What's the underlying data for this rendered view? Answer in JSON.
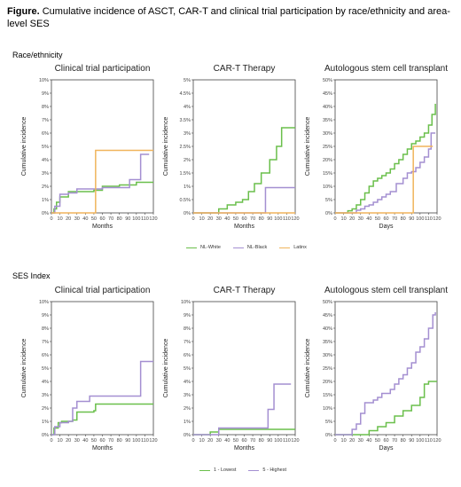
{
  "figure": {
    "label": "Figure.",
    "title": "Cumulative incidence of ASCT, CAR-T and clinical trial participation by race/ethnicity and area-level SES"
  },
  "sections": [
    "Race/ethnicity",
    "SES Index"
  ],
  "legends": [
    [
      {
        "name": "NL-White",
        "color": "#6abf4b"
      },
      {
        "name": "NL-Black",
        "color": "#a48fd1"
      },
      {
        "name": "Latinx",
        "color": "#f0b45c"
      }
    ],
    [
      {
        "name": "1 - Lowest",
        "color": "#6abf4b"
      },
      {
        "name": "5 - Highest",
        "color": "#a48fd1"
      }
    ]
  ],
  "chart_data": [
    {
      "type": "line",
      "step": true,
      "title": "Clinical trial participation",
      "xlabel": "Months",
      "ylabel": "Cumulative incidence",
      "xlim": [
        0,
        120
      ],
      "xticks": [
        "0",
        "10",
        "20",
        "30",
        "40",
        "50",
        "60",
        "70",
        "80",
        "90",
        "100",
        "110",
        "120"
      ],
      "ylim": [
        0,
        10
      ],
      "yticks": [
        "0%",
        "1%",
        "2%",
        "3%",
        "4%",
        "5%",
        "6%",
        "7%",
        "8%",
        "9%",
        "10%"
      ],
      "series": [
        {
          "name": "NL-White",
          "color": "#6abf4b",
          "points": [
            [
              0,
              0
            ],
            [
              3,
              0.3
            ],
            [
              6,
              0.8
            ],
            [
              10,
              1.2
            ],
            [
              20,
              1.6
            ],
            [
              50,
              1.7
            ],
            [
              58,
              1.7
            ],
            [
              60,
              2.0
            ],
            [
              70,
              2.0
            ],
            [
              80,
              2.1
            ],
            [
              100,
              2.3
            ],
            [
              120,
              2.3
            ]
          ]
        },
        {
          "name": "NL-Black",
          "color": "#a48fd1",
          "points": [
            [
              0,
              0
            ],
            [
              4,
              0.5
            ],
            [
              10,
              1.4
            ],
            [
              20,
              1.5
            ],
            [
              30,
              1.8
            ],
            [
              40,
              1.8
            ],
            [
              52,
              1.8
            ],
            [
              60,
              1.9
            ],
            [
              92,
              2.5
            ],
            [
              100,
              2.5
            ],
            [
              105,
              4.4
            ],
            [
              115,
              4.4
            ]
          ]
        },
        {
          "name": "Latinx",
          "color": "#f0b45c",
          "points": [
            [
              0,
              0
            ],
            [
              52,
              0
            ],
            [
              52,
              4.7
            ],
            [
              120,
              4.7
            ]
          ]
        }
      ]
    },
    {
      "type": "line",
      "step": true,
      "title": "CAR-T Therapy",
      "xlabel": "Months",
      "ylabel": "Cumulative incidence",
      "xlim": [
        0,
        120
      ],
      "xticks": [
        "0",
        "10",
        "20",
        "30",
        "40",
        "50",
        "60",
        "70",
        "80",
        "90",
        "100",
        "110",
        "120"
      ],
      "ylim": [
        0,
        5
      ],
      "yticks": [
        "0%",
        "0.5%",
        "1%",
        "1.5%",
        "2%",
        "2.5%",
        "3%",
        "3.5%",
        "4%",
        "4.5%",
        "5%"
      ],
      "series": [
        {
          "name": "NL-White",
          "color": "#6abf4b",
          "points": [
            [
              0,
              0
            ],
            [
              20,
              0
            ],
            [
              30,
              0.15
            ],
            [
              40,
              0.3
            ],
            [
              50,
              0.4
            ],
            [
              58,
              0.5
            ],
            [
              65,
              0.8
            ],
            [
              72,
              1.1
            ],
            [
              80,
              1.5
            ],
            [
              90,
              2.0
            ],
            [
              98,
              2.5
            ],
            [
              104,
              3.2
            ],
            [
              120,
              3.2
            ]
          ]
        },
        {
          "name": "NL-Black",
          "color": "#a48fd1",
          "points": [
            [
              0,
              0
            ],
            [
              80,
              0
            ],
            [
              85,
              0.95
            ],
            [
              120,
              0.95
            ]
          ]
        },
        {
          "name": "Latinx",
          "color": "#f0b45c",
          "points": [
            [
              0,
              0
            ],
            [
              120,
              0
            ]
          ]
        }
      ]
    },
    {
      "type": "line",
      "step": true,
      "title": "Autologous stem cell transplant",
      "xlabel": "Days",
      "ylabel": "Cumulative incidence",
      "xlim": [
        0,
        120
      ],
      "xticks": [
        "0",
        "10",
        "20",
        "30",
        "40",
        "50",
        "60",
        "70",
        "80",
        "90",
        "100",
        "110",
        "120"
      ],
      "ylim": [
        0,
        50
      ],
      "yticks": [
        "0%",
        "5%",
        "10%",
        "15%",
        "20%",
        "25%",
        "30%",
        "35%",
        "40%",
        "45%",
        "50%"
      ],
      "series": [
        {
          "name": "NL-White",
          "color": "#6abf4b",
          "points": [
            [
              0,
              0
            ],
            [
              10,
              0
            ],
            [
              15,
              0.8
            ],
            [
              20,
              1.5
            ],
            [
              25,
              3
            ],
            [
              30,
              5
            ],
            [
              35,
              7.5
            ],
            [
              40,
              10
            ],
            [
              45,
              12
            ],
            [
              50,
              13
            ],
            [
              55,
              14
            ],
            [
              60,
              15
            ],
            [
              65,
              16.5
            ],
            [
              70,
              18.5
            ],
            [
              75,
              20
            ],
            [
              80,
              22
            ],
            [
              85,
              24
            ],
            [
              90,
              26
            ],
            [
              95,
              27
            ],
            [
              100,
              28.5
            ],
            [
              105,
              30
            ],
            [
              110,
              33
            ],
            [
              114,
              37
            ],
            [
              118,
              41
            ]
          ]
        },
        {
          "name": "NL-Black",
          "color": "#a48fd1",
          "points": [
            [
              0,
              0
            ],
            [
              20,
              0
            ],
            [
              25,
              1
            ],
            [
              30,
              1.5
            ],
            [
              35,
              2.5
            ],
            [
              40,
              3
            ],
            [
              45,
              4
            ],
            [
              50,
              5
            ],
            [
              55,
              6
            ],
            [
              60,
              7
            ],
            [
              65,
              8
            ],
            [
              72,
              11
            ],
            [
              80,
              13
            ],
            [
              85,
              15
            ],
            [
              90,
              15.5
            ],
            [
              95,
              17
            ],
            [
              100,
              19
            ],
            [
              105,
              21
            ],
            [
              110,
              24
            ],
            [
              113,
              30
            ],
            [
              118,
              30
            ]
          ]
        },
        {
          "name": "Latinx",
          "color": "#f0b45c",
          "points": [
            [
              0,
              0
            ],
            [
              92,
              0
            ],
            [
              92,
              25
            ],
            [
              115,
              25
            ]
          ]
        }
      ]
    },
    {
      "type": "line",
      "step": true,
      "title": "Clinical trial participation",
      "xlabel": "Months",
      "ylabel": "Cumulative incidence",
      "xlim": [
        0,
        120
      ],
      "xticks": [
        "0",
        "10",
        "20",
        "30",
        "40",
        "50",
        "60",
        "70",
        "80",
        "90",
        "100",
        "110",
        "120"
      ],
      "ylim": [
        0,
        10
      ],
      "yticks": [
        "0%",
        "1%",
        "2%",
        "3%",
        "4%",
        "5%",
        "6%",
        "7%",
        "8%",
        "9%",
        "10%"
      ],
      "series": [
        {
          "name": "1 - Lowest",
          "color": "#6abf4b",
          "points": [
            [
              0,
              0
            ],
            [
              3,
              0.5
            ],
            [
              8,
              0.9
            ],
            [
              12,
              1.0
            ],
            [
              25,
              1.1
            ],
            [
              30,
              1.7
            ],
            [
              50,
              1.8
            ],
            [
              52,
              2.3
            ],
            [
              120,
              2.3
            ]
          ]
        },
        {
          "name": "5 - Highest",
          "color": "#a48fd1",
          "points": [
            [
              0,
              0
            ],
            [
              4,
              0.6
            ],
            [
              10,
              0.9
            ],
            [
              20,
              1.0
            ],
            [
              25,
              2.0
            ],
            [
              30,
              2.5
            ],
            [
              40,
              2.5
            ],
            [
              45,
              2.9
            ],
            [
              105,
              2.9
            ],
            [
              105,
              5.5
            ],
            [
              120,
              5.5
            ]
          ]
        }
      ]
    },
    {
      "type": "line",
      "step": true,
      "title": "CAR-T Therapy",
      "xlabel": "Months",
      "ylabel": "Cumulative incidence",
      "xlim": [
        0,
        120
      ],
      "xticks": [
        "0",
        "10",
        "20",
        "30",
        "40",
        "50",
        "60",
        "70",
        "80",
        "90",
        "100",
        "110",
        "120"
      ],
      "ylim": [
        0,
        10
      ],
      "yticks": [
        "0%",
        "1%",
        "2%",
        "3%",
        "4%",
        "5%",
        "6%",
        "7%",
        "8%",
        "9%",
        "10%"
      ],
      "series": [
        {
          "name": "1 - Lowest",
          "color": "#6abf4b",
          "points": [
            [
              0,
              0
            ],
            [
              15,
              0
            ],
            [
              20,
              0.2
            ],
            [
              30,
              0.4
            ],
            [
              120,
              0.4
            ]
          ]
        },
        {
          "name": "5 - Highest",
          "color": "#a48fd1",
          "points": [
            [
              0,
              0
            ],
            [
              25,
              0
            ],
            [
              30,
              0.5
            ],
            [
              85,
              0.5
            ],
            [
              88,
              1.9
            ],
            [
              95,
              3.8
            ],
            [
              115,
              3.8
            ]
          ]
        }
      ]
    },
    {
      "type": "line",
      "step": true,
      "title": "Autologous stem cell transplant",
      "xlabel": "Days",
      "ylabel": "Cumulative incidence",
      "xlim": [
        0,
        120
      ],
      "xticks": [
        "0",
        "10",
        "20",
        "30",
        "40",
        "50",
        "60",
        "70",
        "80",
        "90",
        "100",
        "110",
        "120"
      ],
      "ylim": [
        0,
        50
      ],
      "yticks": [
        "0%",
        "5%",
        "10%",
        "15%",
        "20%",
        "25%",
        "30%",
        "35%",
        "40%",
        "45%",
        "50%"
      ],
      "series": [
        {
          "name": "1 - Lowest",
          "color": "#6abf4b",
          "points": [
            [
              0,
              0
            ],
            [
              30,
              0
            ],
            [
              40,
              1.5
            ],
            [
              50,
              3
            ],
            [
              60,
              4.5
            ],
            [
              70,
              7
            ],
            [
              80,
              9
            ],
            [
              90,
              11
            ],
            [
              100,
              14
            ],
            [
              105,
              19
            ],
            [
              110,
              20
            ],
            [
              120,
              20
            ]
          ]
        },
        {
          "name": "5 - Highest",
          "color": "#a48fd1",
          "points": [
            [
              0,
              0
            ],
            [
              10,
              0
            ],
            [
              20,
              2
            ],
            [
              25,
              4
            ],
            [
              30,
              8
            ],
            [
              35,
              12
            ],
            [
              45,
              13
            ],
            [
              50,
              14
            ],
            [
              55,
              15.5
            ],
            [
              60,
              15.5
            ],
            [
              65,
              17
            ],
            [
              70,
              19
            ],
            [
              75,
              21
            ],
            [
              80,
              22.5
            ],
            [
              85,
              25
            ],
            [
              90,
              27
            ],
            [
              95,
              31
            ],
            [
              100,
              33
            ],
            [
              105,
              36
            ],
            [
              110,
              40
            ],
            [
              115,
              45
            ],
            [
              118,
              46
            ]
          ]
        }
      ]
    }
  ]
}
